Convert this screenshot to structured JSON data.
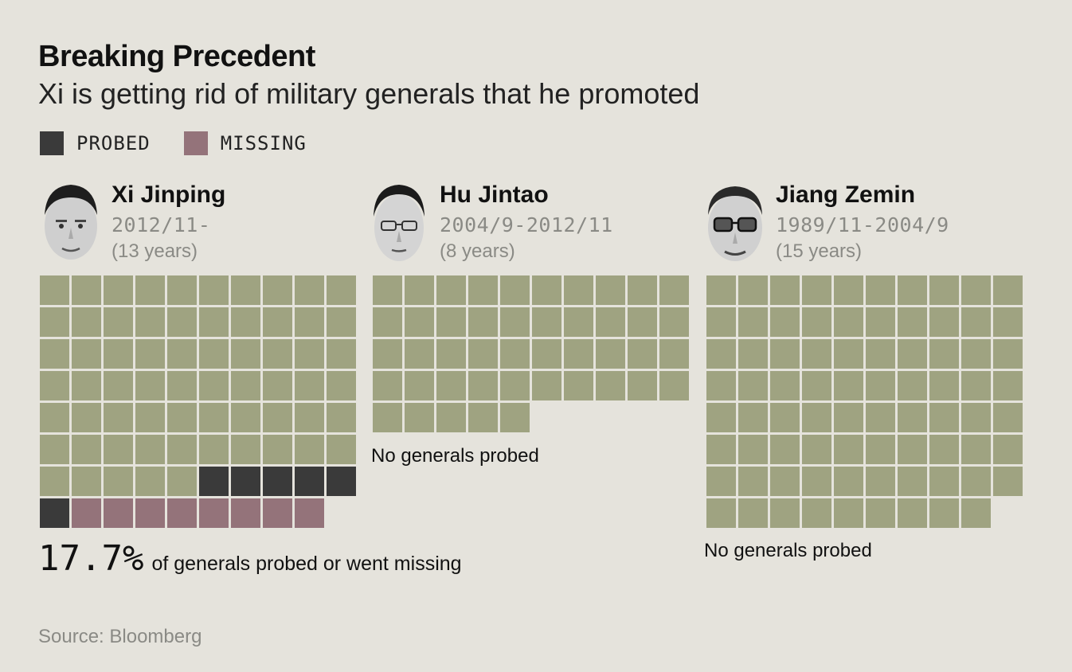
{
  "title": "Breaking Precedent",
  "subtitle": "Xi is getting rid of military generals that he promoted",
  "legend": {
    "probed": {
      "label": "PROBED",
      "color": "#3a3a3a"
    },
    "missing": {
      "label": "MISSING",
      "color": "#94737a"
    }
  },
  "colors": {
    "normal": "#9fa381",
    "probed": "#3a3a3a",
    "missing": "#94737a"
  },
  "panels": [
    {
      "name": "Xi Jinping",
      "dates": "2012/11-",
      "years": "(13 years)",
      "note": ""
    },
    {
      "name": "Hu Jintao",
      "dates": "2004/9-2012/11",
      "years": "(8 years)",
      "note": "No generals probed"
    },
    {
      "name": "Jiang Zemin",
      "dates": "1989/11-2004/9",
      "years": "(15 years)",
      "note": "No generals probed"
    }
  ],
  "chart_data": {
    "type": "waffle",
    "unit": "generals promoted (1 square = 1 general)",
    "columns": 10,
    "series": [
      {
        "name": "Xi Jinping",
        "total": 79,
        "probed": 6,
        "missing": 8
      },
      {
        "name": "Hu Jintao",
        "total": 45,
        "probed": 0,
        "missing": 0
      },
      {
        "name": "Jiang Zemin",
        "total": 79,
        "probed": 0,
        "missing": 0
      }
    ]
  },
  "stat": {
    "value": "17.7%",
    "text": "of generals probed or went missing"
  },
  "source": "Source: Bloomberg"
}
